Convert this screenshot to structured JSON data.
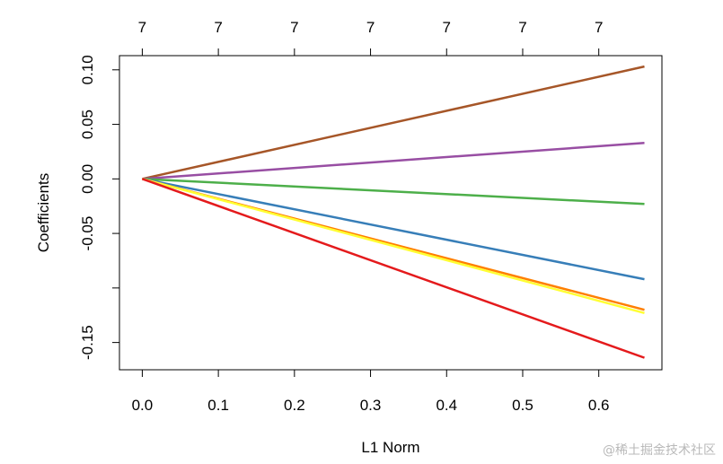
{
  "chart_data": {
    "type": "line",
    "title": "",
    "xlabel": "L1 Norm",
    "ylabel": "Coefficients",
    "xlim": [
      -0.03,
      0.683
    ],
    "ylim": [
      -0.175,
      0.113
    ],
    "x_ticks": [
      0.0,
      0.1,
      0.2,
      0.3,
      0.4,
      0.5,
      0.6
    ],
    "x_tick_labels": [
      "0.0",
      "0.1",
      "0.2",
      "0.3",
      "0.4",
      "0.5",
      "0.6"
    ],
    "y_ticks": [
      -0.15,
      -0.1,
      -0.05,
      0.0,
      0.05,
      0.1
    ],
    "y_tick_labels": [
      "-0.15",
      "",
      "-0.05",
      "0.00",
      "0.05",
      "0.10"
    ],
    "top_axis_tick_labels": [
      "7",
      "7",
      "7",
      "7",
      "7",
      "7",
      "7"
    ],
    "grid": false,
    "x": [
      0.0,
      0.66
    ],
    "series": [
      {
        "color": "#A65628",
        "values": [
          0.0,
          0.103
        ]
      },
      {
        "color": "#984EA3",
        "values": [
          0.0,
          0.033
        ]
      },
      {
        "color": "#4DAF4A",
        "values": [
          0.0,
          -0.023
        ]
      },
      {
        "color": "#377EB8",
        "values": [
          0.0,
          -0.092
        ]
      },
      {
        "color": "#FF7F00",
        "values": [
          0.0,
          -0.12
        ]
      },
      {
        "color": "#FFFF33",
        "values": [
          0.0,
          -0.123
        ]
      },
      {
        "color": "#E41A1C",
        "values": [
          0.0,
          -0.164
        ]
      }
    ]
  },
  "watermark": "@稀土掘金技术社区"
}
